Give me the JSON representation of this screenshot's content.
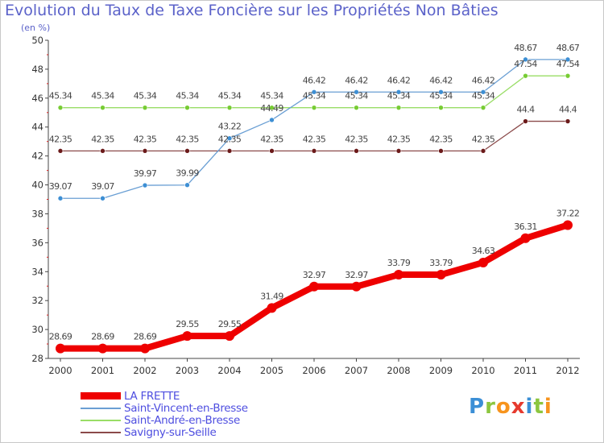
{
  "title": "Evolution du Taux de Taxe Foncière sur les Propriétés Non Bâties",
  "unit": "(en %)",
  "logo": {
    "text": "Proxiti",
    "colors": [
      "#3b8fd6",
      "#8cc63f",
      "#f7941d",
      "#e63a2e",
      "#3b8fd6",
      "#8cc63f",
      "#f7941d"
    ]
  },
  "chart_data": {
    "type": "line",
    "title": "Evolution du Taux de Taxe Foncière sur les Propriétés Non Bâties",
    "ylabel": "(en %)",
    "xlabel": "",
    "categories": [
      "2000",
      "2001",
      "2002",
      "2003",
      "2004",
      "2005",
      "2006",
      "2007",
      "2008",
      "2009",
      "2010",
      "2011",
      "2012"
    ],
    "ylim": [
      28,
      50
    ],
    "yticks": [
      28,
      30,
      32,
      34,
      36,
      38,
      40,
      42,
      44,
      46,
      48,
      50
    ],
    "grid": false,
    "legend": "bottom-left",
    "series": [
      {
        "name": "LA FRETTE",
        "color": "#ee0000",
        "values": [
          28.69,
          28.69,
          28.69,
          29.55,
          29.55,
          31.49,
          32.97,
          32.97,
          33.79,
          33.79,
          34.63,
          36.31,
          37.22
        ],
        "labels": [
          "28.69",
          "28.69",
          "28.69",
          "29.55",
          "29.55",
          "31.49",
          "32.97",
          "32.97",
          "33.79",
          "33.79",
          "34.63",
          "36.31",
          "37.22"
        ]
      },
      {
        "name": "Saint-Vincent-en-Bresse",
        "color": "#6a9fd4",
        "values": [
          39.07,
          39.07,
          39.97,
          39.99,
          43.22,
          44.49,
          46.42,
          46.42,
          46.42,
          46.42,
          46.42,
          48.67,
          48.67
        ],
        "labels": [
          "39.07",
          "39.07",
          "39.97",
          "39.99",
          "43.22",
          "44.49",
          "46.42",
          "46.42",
          "46.42",
          "46.42",
          "46.42",
          "48.67",
          "48.67"
        ]
      },
      {
        "name": "Saint-André-en-Bresse",
        "color": "#99dd66",
        "values": [
          45.34,
          45.34,
          45.34,
          45.34,
          45.34,
          45.34,
          45.34,
          45.34,
          45.34,
          45.34,
          45.34,
          47.54,
          47.54
        ],
        "labels": [
          "45.34",
          "45.34",
          "45.34",
          "45.34",
          "45.34",
          "45.34",
          "45.34",
          "45.34",
          "45.34",
          "45.34",
          "45.34",
          "47.54",
          "47.54"
        ]
      },
      {
        "name": "Savigny-sur-Seille",
        "color": "#8b4a4a",
        "values": [
          42.35,
          42.35,
          42.35,
          42.35,
          42.35,
          42.35,
          42.35,
          42.35,
          42.35,
          42.35,
          42.35,
          44.4,
          44.4
        ],
        "labels": [
          "42.35",
          "42.35",
          "42.35",
          "42.35",
          "42.35",
          "42.35",
          "42.35",
          "42.35",
          "42.35",
          "42.35",
          "42.35",
          "44.4",
          "44.4"
        ]
      }
    ]
  }
}
